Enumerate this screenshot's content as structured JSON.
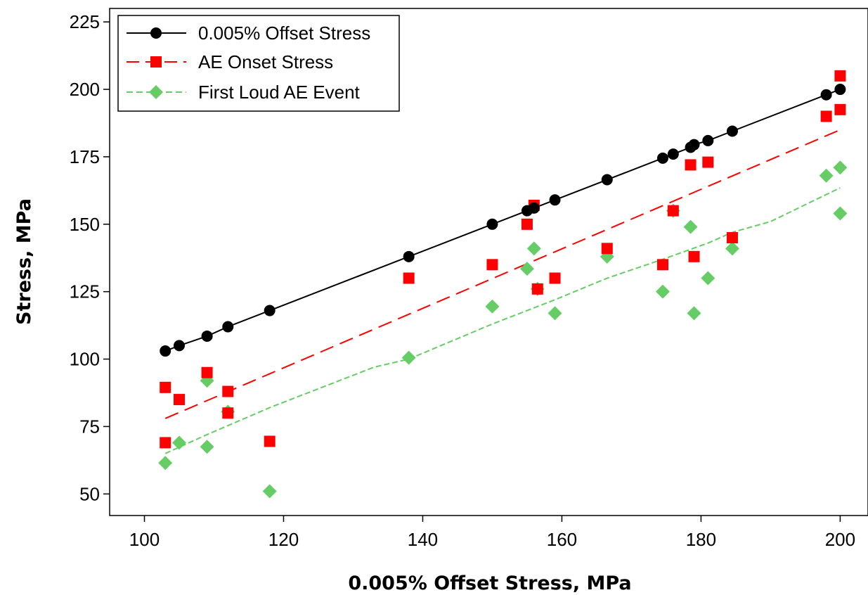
{
  "chart_data": {
    "type": "scatter",
    "xlabel": "0.005% Offset Stress, MPa",
    "ylabel": "Stress, MPa",
    "xlim": [
      95,
      204
    ],
    "ylim": [
      42,
      230
    ],
    "x_ticks": [
      "100",
      "120",
      "140",
      "160",
      "180",
      "200"
    ],
    "y_ticks": [
      "50",
      "75",
      "100",
      "125",
      "150",
      "175",
      "200",
      "225"
    ],
    "legend_position": "top-left",
    "grid": false,
    "series": [
      {
        "name": "0.005% Offset Stress",
        "marker": "circle",
        "line": "solid",
        "color": "#000000",
        "x": [
          103,
          105,
          109,
          112,
          118,
          138,
          150,
          155,
          156,
          159,
          166.5,
          174.5,
          176,
          178.5,
          179,
          181,
          184.5,
          198,
          200
        ],
        "y": [
          103,
          105,
          108.5,
          112,
          118,
          138,
          150,
          155,
          156,
          159,
          166.5,
          174.5,
          176,
          178.5,
          179.5,
          181,
          184.5,
          198,
          200
        ]
      },
      {
        "name": "AE Onset Stress",
        "marker": "square",
        "color": "#ff0000",
        "trend_line": "dashed",
        "x": [
          103,
          103,
          105,
          109,
          112,
          112,
          118,
          138,
          150,
          155,
          156,
          156.5,
          159,
          166.5,
          174.5,
          176,
          178.5,
          179,
          181,
          184.5,
          198,
          200,
          200
        ],
        "y": [
          89.5,
          69,
          85,
          95,
          88,
          80,
          69.5,
          130,
          135,
          150,
          157,
          126,
          130,
          141,
          135,
          155,
          172,
          138,
          173,
          145,
          190,
          192.5,
          205
        ],
        "trend": {
          "x": [
            103,
            200
          ],
          "y": [
            78,
            185
          ]
        }
      },
      {
        "name": "First Loud AE Event",
        "marker": "diamond",
        "color": "#66cc66",
        "trend_line": "dashed",
        "x": [
          103,
          105,
          109,
          109,
          112,
          118,
          138,
          150,
          155,
          156,
          156.5,
          159,
          166.5,
          174.5,
          176,
          178.5,
          179,
          181,
          184.5,
          198,
          200,
          200
        ],
        "y": [
          61.5,
          69,
          67.5,
          92,
          80.5,
          51,
          100.5,
          119.5,
          133.5,
          141,
          126,
          117,
          138,
          125,
          155,
          149,
          117,
          130,
          141,
          168,
          171,
          154
        ],
        "trend": {
          "x": [
            103,
            109,
            118,
            133,
            138,
            150,
            155,
            159,
            166.5,
            174.5,
            181,
            184.5,
            190,
            200
          ],
          "y": [
            65,
            72,
            82,
            97,
            100,
            113,
            118,
            122,
            130,
            137,
            143,
            147,
            151,
            163.5
          ]
        }
      }
    ]
  }
}
